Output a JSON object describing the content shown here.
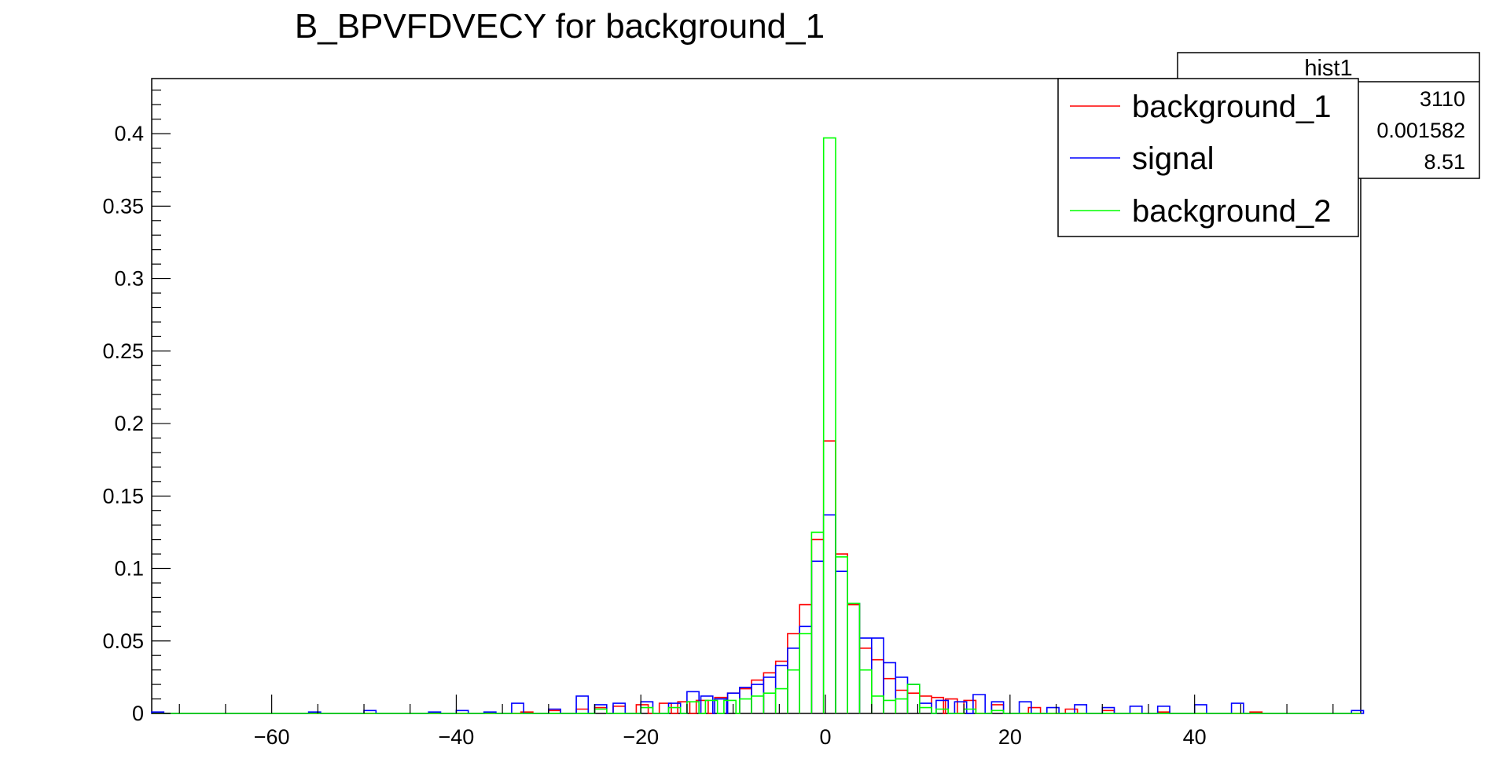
{
  "chart_data": {
    "type": "bar",
    "title": "B_BPVFDVECY for background_1",
    "xlabel": "",
    "ylabel": "",
    "xlim": [
      -73,
      58
    ],
    "ylim": [
      0,
      0.438
    ],
    "bin_width": 1.3,
    "xticks": [
      -60,
      -40,
      -20,
      0,
      20,
      40
    ],
    "xtick_labels": [
      "−60",
      "−40",
      "−20",
      "0",
      "20",
      "40"
    ],
    "yticks": [
      0,
      0.05,
      0.1,
      0.15,
      0.2,
      0.25,
      0.3,
      0.35,
      0.4
    ],
    "ytick_labels": [
      "0",
      "0.05",
      "0.1",
      "0.15",
      "0.2",
      "0.25",
      "0.3",
      "0.35",
      "0.4"
    ],
    "legend_position": "top-right",
    "series": [
      {
        "name": "background_1",
        "color": "#ff0000",
        "points": [
          [
            -33.0,
            0.001
          ],
          [
            -30.0,
            0.002
          ],
          [
            -27.0,
            0.003
          ],
          [
            -25.0,
            0.004
          ],
          [
            -23.0,
            0.005
          ],
          [
            -20.5,
            0.006
          ],
          [
            -18.0,
            0.007
          ],
          [
            -16.0,
            0.008
          ],
          [
            -14.0,
            0.009
          ],
          [
            -12.0,
            0.011
          ],
          [
            -10.6,
            0.014
          ],
          [
            -9.3,
            0.017
          ],
          [
            -8.0,
            0.023
          ],
          [
            -6.7,
            0.028
          ],
          [
            -5.4,
            0.036
          ],
          [
            -4.1,
            0.055
          ],
          [
            -2.8,
            0.075
          ],
          [
            -1.5,
            0.12
          ],
          [
            -0.2,
            0.188
          ],
          [
            1.1,
            0.11
          ],
          [
            2.4,
            0.075
          ],
          [
            3.7,
            0.045
          ],
          [
            5.0,
            0.037
          ],
          [
            6.3,
            0.024
          ],
          [
            7.6,
            0.016
          ],
          [
            8.9,
            0.014
          ],
          [
            10.2,
            0.012
          ],
          [
            11.5,
            0.011
          ],
          [
            13.0,
            0.01
          ],
          [
            15.0,
            0.009
          ],
          [
            18.0,
            0.006
          ],
          [
            22.0,
            0.004
          ],
          [
            26.0,
            0.003
          ],
          [
            30.0,
            0.002
          ],
          [
            36.0,
            0.001
          ],
          [
            46.0,
            0.001
          ]
        ]
      },
      {
        "name": "signal",
        "color": "#0000ff",
        "points": [
          [
            -73.0,
            0.001
          ],
          [
            -56.0,
            0.001
          ],
          [
            -50.0,
            0.002
          ],
          [
            -43.0,
            0.001
          ],
          [
            -40.0,
            0.002
          ],
          [
            -37.0,
            0.001
          ],
          [
            -34.0,
            0.007
          ],
          [
            -30.0,
            0.003
          ],
          [
            -27.0,
            0.012
          ],
          [
            -25.0,
            0.006
          ],
          [
            -23.0,
            0.007
          ],
          [
            -20.0,
            0.008
          ],
          [
            -17.0,
            0.007
          ],
          [
            -15.0,
            0.015
          ],
          [
            -13.5,
            0.012
          ],
          [
            -12.0,
            0.01
          ],
          [
            -10.6,
            0.014
          ],
          [
            -9.3,
            0.018
          ],
          [
            -8.0,
            0.02
          ],
          [
            -6.7,
            0.025
          ],
          [
            -5.4,
            0.033
          ],
          [
            -4.1,
            0.045
          ],
          [
            -2.8,
            0.06
          ],
          [
            -1.5,
            0.105
          ],
          [
            -0.2,
            0.137
          ],
          [
            1.1,
            0.098
          ],
          [
            2.4,
            0.076
          ],
          [
            3.7,
            0.052
          ],
          [
            5.0,
            0.052
          ],
          [
            6.3,
            0.035
          ],
          [
            7.6,
            0.025
          ],
          [
            8.9,
            0.02
          ],
          [
            10.2,
            0.007
          ],
          [
            12.0,
            0.009
          ],
          [
            14.0,
            0.008
          ],
          [
            16.0,
            0.013
          ],
          [
            18.0,
            0.008
          ],
          [
            21.0,
            0.008
          ],
          [
            24.0,
            0.004
          ],
          [
            27.0,
            0.006
          ],
          [
            30.0,
            0.004
          ],
          [
            33.0,
            0.005
          ],
          [
            36.0,
            0.005
          ],
          [
            40.0,
            0.006
          ],
          [
            44.0,
            0.007
          ],
          [
            57.0,
            0.002
          ]
        ]
      },
      {
        "name": "background_2",
        "color": "#00ff00",
        "points": [
          [
            -25.0,
            0.003
          ],
          [
            -20.0,
            0.004
          ],
          [
            -17.0,
            0.004
          ],
          [
            -15.0,
            0.008
          ],
          [
            -13.0,
            0.009
          ],
          [
            -11.0,
            0.009
          ],
          [
            -9.3,
            0.01
          ],
          [
            -8.0,
            0.012
          ],
          [
            -6.7,
            0.014
          ],
          [
            -5.4,
            0.017
          ],
          [
            -4.1,
            0.03
          ],
          [
            -2.8,
            0.055
          ],
          [
            -1.5,
            0.125
          ],
          [
            -0.2,
            0.397
          ],
          [
            1.1,
            0.108
          ],
          [
            2.4,
            0.076
          ],
          [
            3.7,
            0.03
          ],
          [
            5.0,
            0.012
          ],
          [
            6.3,
            0.009
          ],
          [
            7.6,
            0.01
          ],
          [
            8.9,
            0.02
          ],
          [
            10.2,
            0.004
          ],
          [
            12.0,
            0.003
          ],
          [
            15.0,
            0.003
          ],
          [
            18.0,
            0.002
          ]
        ]
      }
    ],
    "stats_box": {
      "title": "hist1",
      "values": [
        "3110",
        "0.001582",
        "8.51"
      ]
    }
  }
}
